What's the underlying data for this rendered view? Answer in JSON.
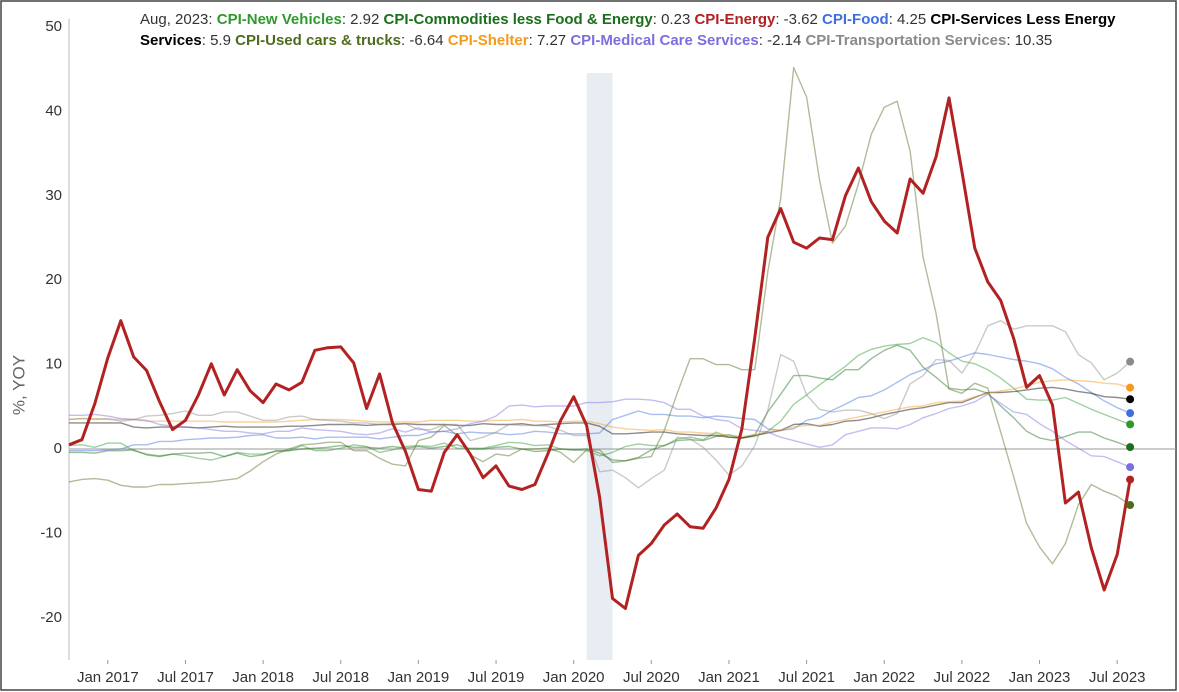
{
  "chart_data": {
    "type": "line",
    "hover_label": "Aug, 2023",
    "y_label": "%, YOY",
    "xlim": [
      "2016-10",
      "2023-10"
    ],
    "ylim": [
      -25,
      51
    ],
    "yticks": [
      -20,
      -10,
      0,
      10,
      20,
      30,
      40,
      50
    ],
    "xticks": [
      {
        "value": "2017-01",
        "label": "Jan 2017"
      },
      {
        "value": "2017-07",
        "label": "Jul 2017"
      },
      {
        "value": "2018-01",
        "label": "Jan 2018"
      },
      {
        "value": "2018-07",
        "label": "Jul 2018"
      },
      {
        "value": "2019-01",
        "label": "Jan 2019"
      },
      {
        "value": "2019-07",
        "label": "Jul 2019"
      },
      {
        "value": "2020-01",
        "label": "Jan 2020"
      },
      {
        "value": "2020-07",
        "label": "Jul 2020"
      },
      {
        "value": "2021-01",
        "label": "Jan 2021"
      },
      {
        "value": "2021-07",
        "label": "Jul 2021"
      },
      {
        "value": "2022-01",
        "label": "Jan 2022"
      },
      {
        "value": "2022-07",
        "label": "Jul 2022"
      },
      {
        "value": "2023-01",
        "label": "Jan 2023"
      },
      {
        "value": "2023-07",
        "label": "Jul 2023"
      }
    ],
    "recessions": [
      {
        "start": "2020-02",
        "end": "2020-04"
      }
    ],
    "grid": false,
    "end_markers": true,
    "x": [
      "2016-10",
      "2016-11",
      "2016-12",
      "2017-01",
      "2017-02",
      "2017-03",
      "2017-04",
      "2017-05",
      "2017-06",
      "2017-07",
      "2017-08",
      "2017-09",
      "2017-10",
      "2017-11",
      "2017-12",
      "2018-01",
      "2018-02",
      "2018-03",
      "2018-04",
      "2018-05",
      "2018-06",
      "2018-07",
      "2018-08",
      "2018-09",
      "2018-10",
      "2018-11",
      "2018-12",
      "2019-01",
      "2019-02",
      "2019-03",
      "2019-04",
      "2019-05",
      "2019-06",
      "2019-07",
      "2019-08",
      "2019-09",
      "2019-10",
      "2019-11",
      "2019-12",
      "2020-01",
      "2020-02",
      "2020-03",
      "2020-04",
      "2020-05",
      "2020-06",
      "2020-07",
      "2020-08",
      "2020-09",
      "2020-10",
      "2020-11",
      "2020-12",
      "2021-01",
      "2021-02",
      "2021-03",
      "2021-04",
      "2021-05",
      "2021-06",
      "2021-07",
      "2021-08",
      "2021-09",
      "2021-10",
      "2021-11",
      "2021-12",
      "2022-01",
      "2022-02",
      "2022-03",
      "2022-04",
      "2022-05",
      "2022-06",
      "2022-07",
      "2022-08",
      "2022-09",
      "2022-10",
      "2022-11",
      "2022-12",
      "2023-01",
      "2023-02",
      "2023-03",
      "2023-04",
      "2023-05",
      "2023-06",
      "2023-07",
      "2023-08"
    ],
    "series": [
      {
        "name": "CPI-New Vehicles",
        "color": "#2e9a2e",
        "values": [
          0.4,
          0.5,
          0.2,
          0.7,
          0.7,
          -0.2,
          -0.6,
          -0.8,
          -0.6,
          -0.8,
          -1.1,
          -1.3,
          -0.9,
          -0.4,
          -0.6,
          -0.6,
          -0.3,
          -0.2,
          0.4,
          -0.2,
          -0.2,
          0.1,
          0.5,
          0.3,
          -0.4,
          -0.1,
          0.3,
          0.4,
          0.3,
          0.7,
          0.1,
          0.1,
          0.1,
          0.4,
          0.8,
          0.7,
          0.4,
          0.5,
          0.0,
          -0.1,
          -0.2,
          -0.8,
          -0.4,
          0.3,
          0.6,
          0.4,
          0.4,
          1.2,
          1.4,
          1.1,
          2.0,
          1.4,
          1.3,
          1.5,
          2.1,
          3.3,
          5.3,
          6.4,
          7.6,
          8.7,
          9.8,
          11.1,
          11.8,
          12.2,
          12.4,
          12.5,
          13.2,
          12.6,
          11.4,
          10.4,
          10.1,
          9.4,
          8.4,
          7.2,
          5.9,
          5.8,
          5.8,
          6.1,
          5.4,
          4.7,
          4.1,
          3.5,
          2.92
        ]
      },
      {
        "name": "CPI-Commodities less Food & Energy",
        "color": "#1b6e1b",
        "values": [
          -0.4,
          -0.4,
          -0.5,
          -0.2,
          -0.2,
          -0.1,
          -0.7,
          -0.9,
          -0.6,
          -0.5,
          -0.5,
          -0.4,
          -0.9,
          -0.5,
          -0.9,
          -0.7,
          -0.2,
          -0.2,
          0.0,
          0.1,
          0.2,
          0.4,
          0.2,
          0.2,
          0.1,
          0.3,
          0.1,
          0.3,
          0.1,
          0.3,
          0.5,
          0.0,
          0.0,
          0.2,
          0.3,
          0.0,
          -0.3,
          -0.2,
          0.0,
          -0.1,
          0.0,
          -0.5,
          -1.3,
          -1.4,
          -1.0,
          -0.1,
          0.4,
          1.0,
          1.1,
          1.0,
          1.5,
          1.7,
          1.3,
          1.7,
          4.4,
          6.5,
          8.7,
          8.7,
          8.4,
          8.2,
          9.4,
          9.4,
          10.7,
          11.7,
          12.3,
          11.7,
          9.7,
          8.5,
          7.2,
          7.0,
          7.1,
          6.6,
          5.1,
          3.7,
          2.1,
          1.3,
          1.0,
          1.5,
          2.0,
          2.0,
          1.3,
          0.8,
          0.23
        ]
      },
      {
        "name": "CPI-Energy",
        "color": "#b22222",
        "emphasis": true,
        "values": [
          0.5,
          1.1,
          5.4,
          10.8,
          15.2,
          10.9,
          9.3,
          5.6,
          2.3,
          3.4,
          6.4,
          10.1,
          6.4,
          9.4,
          6.9,
          5.5,
          7.7,
          7.0,
          7.9,
          11.7,
          12.0,
          12.1,
          10.2,
          4.8,
          8.9,
          3.1,
          -0.3,
          -4.8,
          -5.0,
          -0.4,
          1.7,
          -0.6,
          -3.4,
          -2.0,
          -4.4,
          -4.8,
          -4.2,
          -0.6,
          3.4,
          6.2,
          2.8,
          -5.7,
          -17.7,
          -18.9,
          -12.6,
          -11.2,
          -9.0,
          -7.7,
          -9.2,
          -9.4,
          -7.0,
          -3.6,
          2.4,
          13.2,
          25.1,
          28.5,
          24.5,
          23.8,
          25.0,
          24.8,
          30.0,
          33.3,
          29.3,
          27.0,
          25.6,
          32.0,
          30.3,
          34.6,
          41.6,
          32.9,
          23.8,
          19.8,
          17.6,
          13.1,
          7.3,
          8.7,
          5.2,
          -6.4,
          -5.1,
          -11.7,
          -16.7,
          -12.5,
          -3.62
        ]
      },
      {
        "name": "CPI-Food",
        "color": "#3d6fe0",
        "values": [
          -0.2,
          -0.2,
          -0.2,
          -0.1,
          0.0,
          0.5,
          0.5,
          0.9,
          0.9,
          1.1,
          1.2,
          1.3,
          1.3,
          1.4,
          1.6,
          1.7,
          1.3,
          1.3,
          1.4,
          1.2,
          1.4,
          1.4,
          1.4,
          1.4,
          1.2,
          1.4,
          1.6,
          1.6,
          2.0,
          2.1,
          1.8,
          2.0,
          1.9,
          1.9,
          1.7,
          1.8,
          2.1,
          2.0,
          1.8,
          1.8,
          1.8,
          1.9,
          3.5,
          4.0,
          4.5,
          4.1,
          4.1,
          3.9,
          3.9,
          3.7,
          3.9,
          3.8,
          3.6,
          3.5,
          2.4,
          2.2,
          2.4,
          3.4,
          3.7,
          4.6,
          5.3,
          6.1,
          6.3,
          7.0,
          7.9,
          8.8,
          9.4,
          10.1,
          10.4,
          10.9,
          11.4,
          11.2,
          10.9,
          10.6,
          10.4,
          10.1,
          9.5,
          8.5,
          7.7,
          6.7,
          5.7,
          4.9,
          4.25
        ]
      },
      {
        "name": "CPI-Services Less Energy Services",
        "color": "#000000",
        "values": [
          3.1,
          3.1,
          3.1,
          3.1,
          3.1,
          2.6,
          2.5,
          2.6,
          2.6,
          2.6,
          2.5,
          2.6,
          2.7,
          2.6,
          2.6,
          2.6,
          2.6,
          2.7,
          2.7,
          2.8,
          2.9,
          2.9,
          2.9,
          2.8,
          2.9,
          2.9,
          3.0,
          2.9,
          2.9,
          2.9,
          2.8,
          2.8,
          3.0,
          2.9,
          2.9,
          3.0,
          2.8,
          2.9,
          3.0,
          3.1,
          3.1,
          2.7,
          1.8,
          1.8,
          1.9,
          2.0,
          2.0,
          1.8,
          1.7,
          1.6,
          1.6,
          1.4,
          1.3,
          1.6,
          1.9,
          2.2,
          2.9,
          3.0,
          2.7,
          2.9,
          3.3,
          3.4,
          3.7,
          4.1,
          4.4,
          4.7,
          4.9,
          5.2,
          5.5,
          5.5,
          6.1,
          6.7,
          6.7,
          6.8,
          7.0,
          7.2,
          7.3,
          7.1,
          6.8,
          6.6,
          6.2,
          6.1,
          5.9
        ]
      },
      {
        "name": "CPI-Used cars & trucks",
        "color": "#4f6b1e",
        "values": [
          -3.9,
          -3.6,
          -3.5,
          -3.7,
          -4.3,
          -4.5,
          -4.5,
          -4.2,
          -4.2,
          -4.1,
          -4.0,
          -3.9,
          -3.7,
          -3.5,
          -2.6,
          -1.5,
          -0.6,
          0.0,
          0.5,
          0.6,
          0.8,
          0.8,
          -0.2,
          -0.2,
          -1.1,
          -1.8,
          -2.0,
          1.0,
          1.4,
          2.8,
          1.6,
          -0.7,
          -1.5,
          -0.6,
          -0.8,
          0.0,
          0.0,
          0.1,
          -0.4,
          -1.6,
          -0.1,
          -0.1,
          -1.6,
          -1.4,
          -1.1,
          -0.9,
          2.2,
          6.6,
          10.7,
          10.7,
          10.0,
          10.0,
          9.4,
          9.4,
          21.0,
          29.7,
          45.2,
          41.7,
          31.9,
          24.4,
          26.4,
          31.4,
          37.3,
          40.5,
          41.2,
          35.3,
          22.7,
          16.1,
          7.1,
          6.6,
          7.8,
          7.2,
          2.0,
          -3.3,
          -8.8,
          -11.6,
          -13.6,
          -11.2,
          -6.6,
          -4.2,
          -5.0,
          -5.6,
          -6.64
        ]
      },
      {
        "name": "CPI-Shelter",
        "color": "#f59a1b",
        "values": [
          3.5,
          3.6,
          3.6,
          3.5,
          3.5,
          3.5,
          3.3,
          3.3,
          3.3,
          3.3,
          3.3,
          3.3,
          3.2,
          3.2,
          3.2,
          3.2,
          3.2,
          3.3,
          3.4,
          3.5,
          3.5,
          3.5,
          3.4,
          3.3,
          3.2,
          3.2,
          3.2,
          3.2,
          3.4,
          3.4,
          3.4,
          3.3,
          3.3,
          3.4,
          3.4,
          3.5,
          3.3,
          3.3,
          3.2,
          3.3,
          3.3,
          3.0,
          2.6,
          2.4,
          2.3,
          2.2,
          2.3,
          2.0,
          2.0,
          1.9,
          1.8,
          1.6,
          1.5,
          1.7,
          2.1,
          2.2,
          2.6,
          2.8,
          2.8,
          3.2,
          3.5,
          3.8,
          4.1,
          4.4,
          4.7,
          5.0,
          5.1,
          5.5,
          5.6,
          5.7,
          6.2,
          6.6,
          6.9,
          7.1,
          7.5,
          7.9,
          8.1,
          8.2,
          8.1,
          8.0,
          7.8,
          7.7,
          7.27
        ]
      },
      {
        "name": "CPI-Medical Care Services",
        "color": "#7b6fe0",
        "values": [
          4.0,
          4.0,
          4.1,
          3.9,
          3.6,
          3.5,
          3.4,
          2.9,
          2.7,
          2.6,
          2.5,
          2.3,
          2.1,
          2.1,
          1.9,
          1.8,
          2.1,
          2.1,
          2.5,
          2.3,
          2.2,
          2.1,
          1.8,
          1.7,
          1.9,
          2.4,
          2.0,
          2.5,
          2.0,
          2.1,
          2.4,
          3.0,
          3.3,
          3.9,
          5.1,
          5.2,
          5.0,
          5.1,
          5.1,
          5.1,
          5.5,
          5.5,
          5.6,
          5.9,
          5.9,
          5.8,
          5.5,
          4.7,
          4.7,
          3.9,
          3.5,
          3.3,
          2.4,
          2.2,
          2.0,
          1.4,
          1.0,
          0.6,
          0.2,
          0.5,
          1.7,
          2.1,
          2.5,
          2.5,
          2.4,
          2.9,
          3.7,
          4.2,
          4.8,
          5.1,
          5.6,
          6.5,
          5.4,
          4.4,
          4.1,
          3.0,
          2.1,
          1.0,
          0.1,
          -0.8,
          -0.9,
          -1.5,
          -2.14
        ]
      },
      {
        "name": "CPI-Transportation Services",
        "color": "#8a8a8a",
        "values": [
          3.5,
          3.6,
          3.5,
          3.6,
          3.3,
          3.5,
          3.9,
          4.0,
          4.2,
          4.5,
          4.0,
          4.0,
          4.4,
          4.4,
          3.9,
          3.4,
          3.4,
          3.8,
          3.9,
          3.5,
          3.4,
          3.3,
          3.1,
          3.1,
          2.9,
          3.0,
          3.0,
          2.3,
          2.3,
          2.9,
          2.9,
          1.0,
          1.4,
          2.0,
          2.9,
          2.8,
          2.8,
          2.7,
          2.2,
          1.6,
          1.6,
          -2.7,
          -2.5,
          -3.4,
          -4.6,
          -3.5,
          -2.5,
          1.4,
          1.2,
          0.2,
          -1.3,
          -3.1,
          -2.0,
          0.4,
          4.6,
          11.2,
          10.4,
          6.4,
          4.7,
          4.4,
          4.6,
          4.6,
          4.2,
          3.6,
          4.2,
          7.7,
          8.7,
          10.6,
          10.5,
          9.0,
          11.3,
          14.6,
          15.2,
          14.2,
          14.6,
          14.6,
          14.6,
          13.9,
          11.2,
          10.2,
          8.2,
          9.0,
          10.35
        ]
      }
    ]
  }
}
